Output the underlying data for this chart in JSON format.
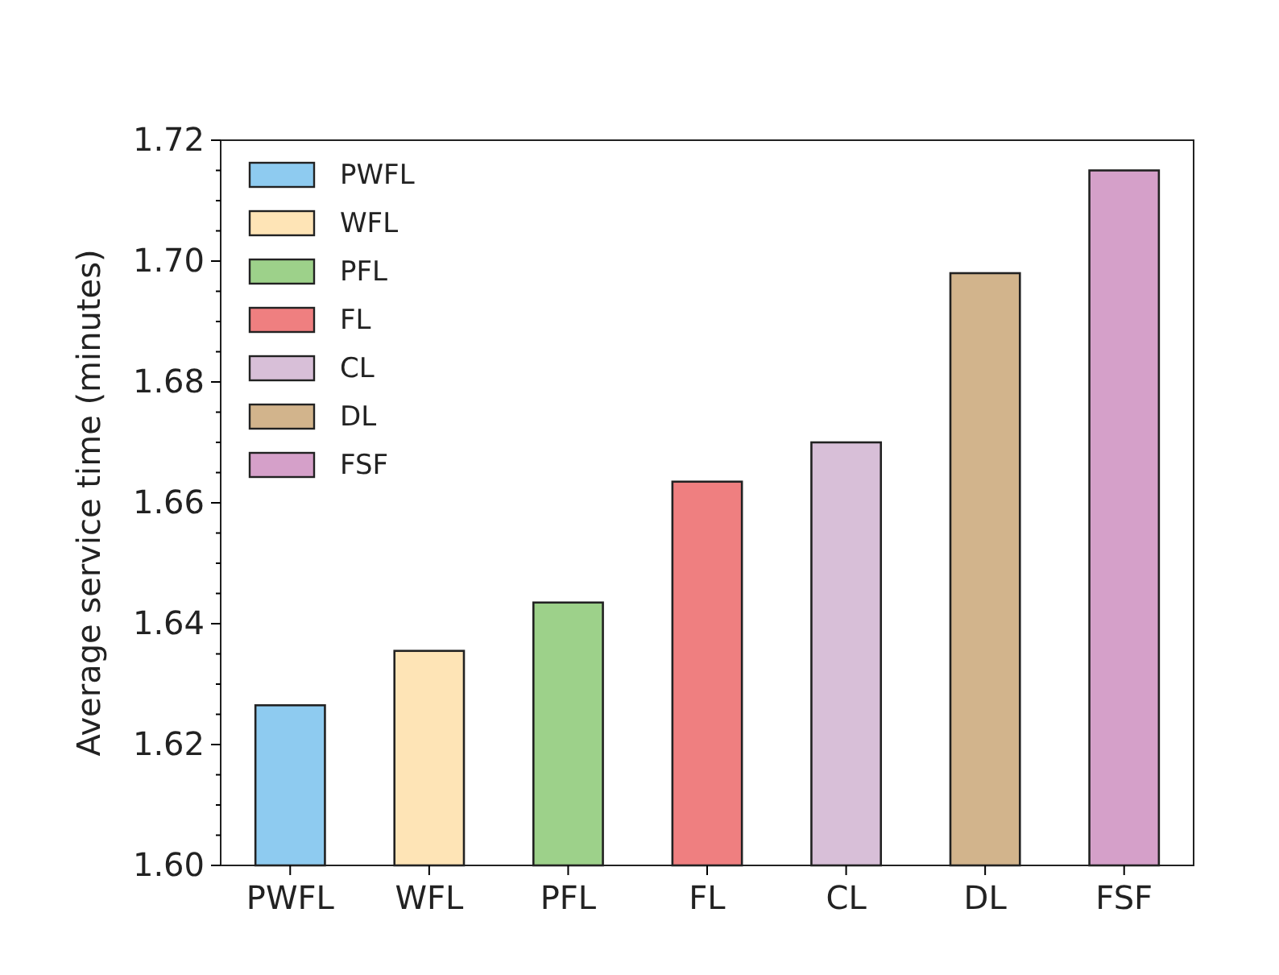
{
  "chart_data": {
    "type": "bar",
    "ylabel": "Average service time (minutes)",
    "categories": [
      "PWFL",
      "WFL",
      "PFL",
      "FL",
      "CL",
      "DL",
      "FSF"
    ],
    "series": [
      {
        "name": "PWFL",
        "color": "#8ecbf0",
        "values": [
          1.6265,
          null,
          null,
          null,
          null,
          null,
          null
        ]
      },
      {
        "name": "WFL",
        "color": "#fee4b6",
        "values": [
          null,
          1.6355,
          null,
          null,
          null,
          null,
          null
        ]
      },
      {
        "name": "PFL",
        "color": "#9dd18a",
        "values": [
          null,
          null,
          1.6435,
          null,
          null,
          null,
          null
        ]
      },
      {
        "name": "FL",
        "color": "#ef7f80",
        "values": [
          null,
          null,
          null,
          1.6635,
          null,
          null,
          null
        ]
      },
      {
        "name": "CL",
        "color": "#d8bfd8",
        "values": [
          null,
          null,
          null,
          null,
          1.67,
          null,
          null
        ]
      },
      {
        "name": "DL",
        "color": "#d2b48c",
        "values": [
          null,
          null,
          null,
          null,
          null,
          1.698,
          null
        ]
      },
      {
        "name": "FSF",
        "color": "#d5a0c9",
        "values": [
          null,
          null,
          null,
          null,
          null,
          null,
          1.715
        ]
      }
    ],
    "ylim": [
      1.6,
      1.72
    ],
    "yticks": [
      {
        "value": 1.6,
        "label": "1.60"
      },
      {
        "value": 1.605,
        "label": null
      },
      {
        "value": 1.61,
        "label": null
      },
      {
        "value": 1.615,
        "label": null
      },
      {
        "value": 1.62,
        "label": "1.62"
      },
      {
        "value": 1.625,
        "label": null
      },
      {
        "value": 1.63,
        "label": null
      },
      {
        "value": 1.635,
        "label": null
      },
      {
        "value": 1.64,
        "label": "1.64"
      },
      {
        "value": 1.645,
        "label": null
      },
      {
        "value": 1.65,
        "label": null
      },
      {
        "value": 1.655,
        "label": null
      },
      {
        "value": 1.66,
        "label": "1.66"
      },
      {
        "value": 1.665,
        "label": null
      },
      {
        "value": 1.67,
        "label": null
      },
      {
        "value": 1.675,
        "label": null
      },
      {
        "value": 1.68,
        "label": "1.68"
      },
      {
        "value": 1.685,
        "label": null
      },
      {
        "value": 1.69,
        "label": null
      },
      {
        "value": 1.695,
        "label": null
      },
      {
        "value": 1.7,
        "label": "1.70"
      },
      {
        "value": 1.705,
        "label": null
      },
      {
        "value": 1.71,
        "label": null
      },
      {
        "value": 1.715,
        "label": null
      },
      {
        "value": 1.72,
        "label": "1.72"
      }
    ],
    "legend": "top left",
    "grid": false
  }
}
